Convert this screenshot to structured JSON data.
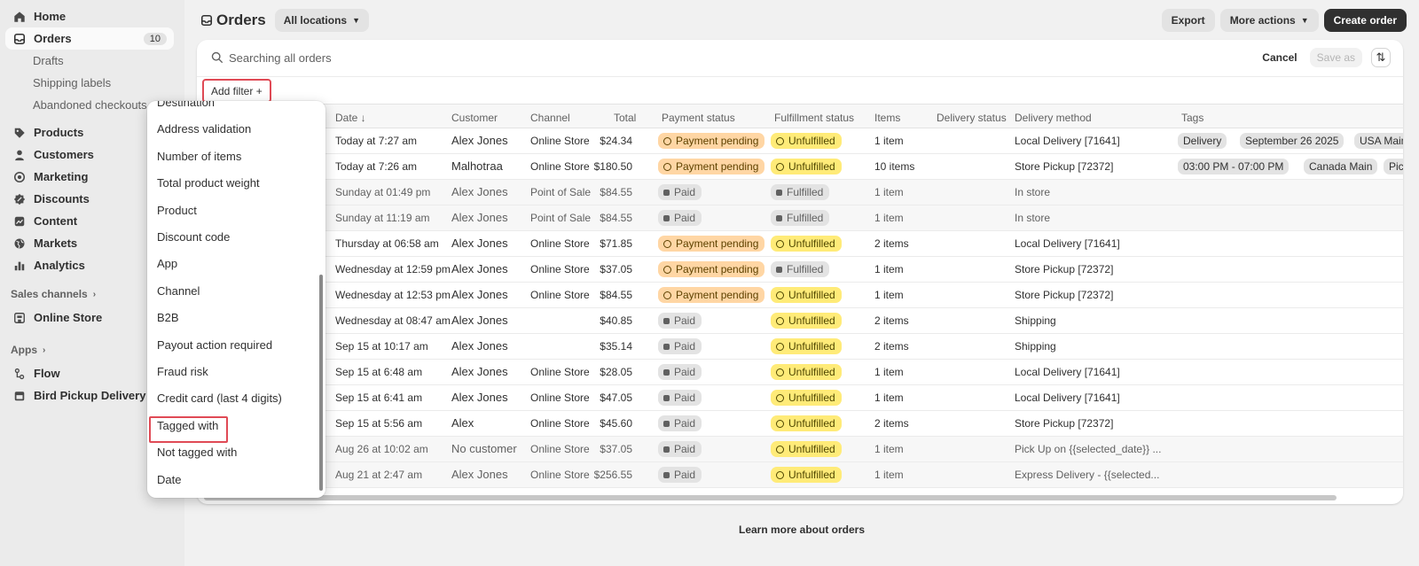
{
  "sidebar": {
    "nav": [
      {
        "label": "Home",
        "icon": "home-icon"
      },
      {
        "label": "Orders",
        "icon": "inbox-icon",
        "badge": "10",
        "active": true
      },
      {
        "label": "Products",
        "icon": "tag-icon"
      },
      {
        "label": "Customers",
        "icon": "person-icon"
      },
      {
        "label": "Marketing",
        "icon": "target-icon"
      },
      {
        "label": "Discounts",
        "icon": "discount-icon"
      },
      {
        "label": "Content",
        "icon": "content-icon"
      },
      {
        "label": "Markets",
        "icon": "globe-icon"
      },
      {
        "label": "Analytics",
        "icon": "chart-bar-icon"
      }
    ],
    "orders_sub": [
      "Drafts",
      "Shipping labels",
      "Abandoned checkouts"
    ],
    "sales_channels_label": "Sales channels",
    "online_store": "Online Store",
    "apps_label": "Apps",
    "flow": "Flow",
    "bird": "Bird Pickup Delivery"
  },
  "header": {
    "title": "Orders",
    "location": "All locations",
    "export": "Export",
    "more_actions": "More actions",
    "create_order": "Create order"
  },
  "search": {
    "placeholder": "Searching all orders",
    "cancel": "Cancel",
    "save_as": "Save as"
  },
  "add_filter": "Add filter +",
  "columns": {
    "date": "Date ↓",
    "customer": "Customer",
    "channel": "Channel",
    "total": "Total",
    "payment_status": "Payment status",
    "fulfillment_status": "Fulfillment status",
    "items": "Items",
    "delivery_status": "Delivery status",
    "delivery_method": "Delivery method",
    "tags": "Tags"
  },
  "rows": [
    {
      "date": "Today at 7:27 am",
      "customer": "Alex Jones",
      "channel": "Online Store",
      "total": "$24.34",
      "payment": "Payment pending",
      "fulfillment": "Unfulfilled",
      "items": "1 item",
      "delivery": "Local Delivery [71641]",
      "tags": [
        "Delivery",
        "September 26 2025",
        "USA Main"
      ]
    },
    {
      "date": "Today at 7:26 am",
      "customer": "Malhotraa",
      "channel": "Online Store",
      "total": "$180.50",
      "payment": "Payment pending",
      "fulfillment": "Unfulfilled",
      "items": "10 items",
      "delivery": "Store Pickup [72372]",
      "tags": [
        "03:00 PM - 07:00 PM",
        "Canada Main",
        "Pick Up"
      ]
    },
    {
      "date": "Sunday at 01:49 pm",
      "customer": "Alex Jones",
      "channel": "Point of Sale",
      "total": "$84.55",
      "payment": "Paid",
      "fulfillment": "Fulfilled",
      "items": "1 item",
      "delivery": "In store",
      "tags": [],
      "muted": true
    },
    {
      "date": "Sunday at 11:19 am",
      "customer": "Alex Jones",
      "channel": "Point of Sale",
      "total": "$84.55",
      "payment": "Paid",
      "fulfillment": "Fulfilled",
      "items": "1 item",
      "delivery": "In store",
      "tags": [],
      "muted": true
    },
    {
      "date": "Thursday at 06:58 am",
      "customer": "Alex Jones",
      "channel": "Online Store",
      "total": "$71.85",
      "payment": "Payment pending",
      "fulfillment": "Unfulfilled",
      "items": "2 items",
      "delivery": "Local Delivery [71641]",
      "tags": []
    },
    {
      "date": "Wednesday at 12:59 pm",
      "customer": "Alex Jones",
      "channel": "Online Store",
      "total": "$37.05",
      "payment": "Payment pending",
      "fulfillment": "Fulfilled",
      "items": "1 item",
      "delivery": "Store Pickup [72372]",
      "tags": []
    },
    {
      "date": "Wednesday at 12:53 pm",
      "customer": "Alex Jones",
      "channel": "Online Store",
      "total": "$84.55",
      "payment": "Payment pending",
      "fulfillment": "Unfulfilled",
      "items": "1 item",
      "delivery": "Store Pickup [72372]",
      "tags": []
    },
    {
      "date": "Wednesday at 08:47 am",
      "customer": "Alex Jones",
      "channel": "",
      "total": "$40.85",
      "payment": "Paid",
      "fulfillment": "Unfulfilled",
      "items": "2 items",
      "delivery": "Shipping",
      "tags": []
    },
    {
      "date": "Sep 15 at 10:17 am",
      "customer": "Alex Jones",
      "channel": "",
      "total": "$35.14",
      "payment": "Paid",
      "fulfillment": "Unfulfilled",
      "items": "2 items",
      "delivery": "Shipping",
      "tags": []
    },
    {
      "date": "Sep 15 at 6:48 am",
      "customer": "Alex Jones",
      "channel": "Online Store",
      "total": "$28.05",
      "payment": "Paid",
      "fulfillment": "Unfulfilled",
      "items": "1 item",
      "delivery": "Local Delivery [71641]",
      "tags": []
    },
    {
      "date": "Sep 15 at 6:41 am",
      "customer": "Alex Jones",
      "channel": "Online Store",
      "total": "$47.05",
      "payment": "Paid",
      "fulfillment": "Unfulfilled",
      "items": "1 item",
      "delivery": "Local Delivery [71641]",
      "tags": []
    },
    {
      "date": "Sep 15 at 5:56 am",
      "customer": "Alex",
      "channel": "Online Store",
      "total": "$45.60",
      "payment": "Paid",
      "fulfillment": "Unfulfilled",
      "items": "2 items",
      "delivery": "Store Pickup [72372]",
      "tags": []
    },
    {
      "date": "Aug 26 at 10:02 am",
      "customer": "No customer",
      "channel": "Online Store",
      "total": "$37.05",
      "payment": "Paid",
      "fulfillment": "Unfulfilled",
      "items": "1 item",
      "delivery": "Pick Up on {{selected_date}} ...",
      "tags": [],
      "muted": true
    },
    {
      "date": "Aug 21 at 2:47 am",
      "customer": "Alex Jones",
      "channel": "Online Store",
      "total": "$256.55",
      "payment": "Paid",
      "fulfillment": "Unfulfilled",
      "items": "1 item",
      "delivery": "Express Delivery - {{selected...",
      "tags": [],
      "muted": true
    }
  ],
  "filter_menu": [
    "Destination",
    "Address validation",
    "Number of items",
    "Total product weight",
    "Product",
    "Discount code",
    "App",
    "Channel",
    "B2B",
    "Payout action required",
    "Fraud risk",
    "Credit card (last 4 digits)",
    "Tagged with",
    "Not tagged with",
    "Date"
  ],
  "learn_more": "Learn more about orders",
  "colors": {
    "pending_bg": "#ffd6a4",
    "unfulfilled_bg": "#ffeb78",
    "neutral_bg": "#e3e3e3",
    "highlight": "#e04a55",
    "primary_button": "#303030"
  }
}
